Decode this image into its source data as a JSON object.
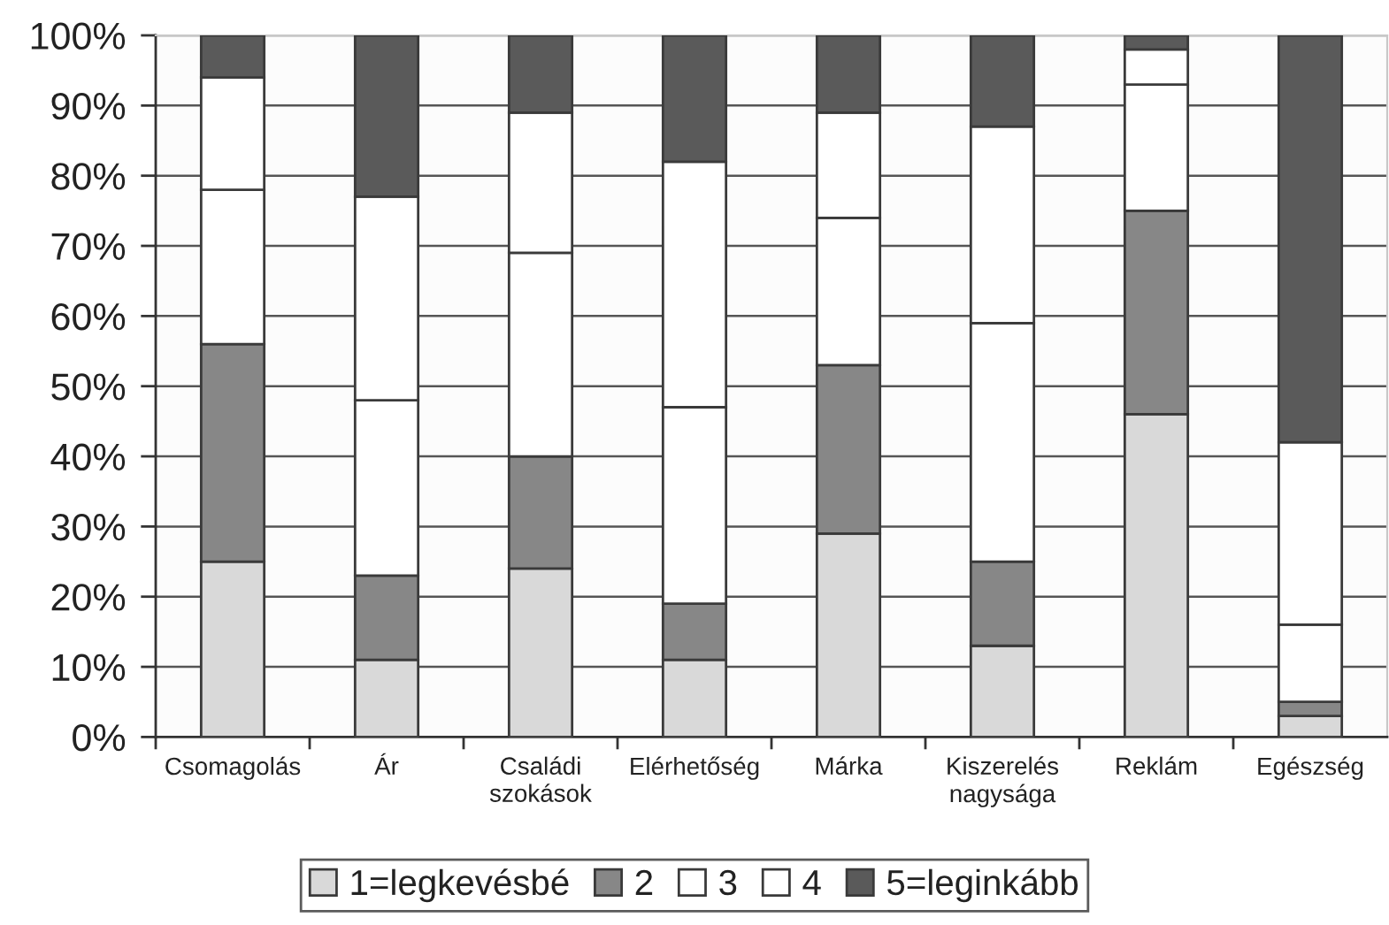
{
  "chart_data": {
    "type": "bar",
    "stacked": true,
    "categories": [
      "Csomagolás",
      "Ár",
      "Családi szokások",
      "Elérhetőség",
      "Márka",
      "Kiszerelés nagysága",
      "Reklám",
      "Egészség"
    ],
    "series": [
      {
        "name": "1=legkevésbé",
        "color": "#d9d9d9",
        "values": [
          25,
          11,
          24,
          11,
          29,
          13,
          46,
          3
        ]
      },
      {
        "name": "2",
        "color": "#878787",
        "values": [
          31,
          12,
          16,
          8,
          24,
          12,
          29,
          2
        ]
      },
      {
        "name": "3",
        "color": "#ffffff",
        "values": [
          22,
          25,
          29,
          28,
          21,
          34,
          18,
          11
        ]
      },
      {
        "name": "4",
        "color": "#ffffff",
        "values": [
          16,
          29,
          20,
          35,
          15,
          28,
          5,
          26
        ]
      },
      {
        "name": "5=leginkább",
        "color": "#5a5a5a",
        "values": [
          6,
          23,
          11,
          18,
          11,
          13,
          2,
          58
        ]
      }
    ],
    "ylim": [
      0,
      100
    ],
    "yticks": [
      {
        "value": 0,
        "label": "0%"
      },
      {
        "value": 10,
        "label": "10%"
      },
      {
        "value": 20,
        "label": "20%"
      },
      {
        "value": 30,
        "label": "30%"
      },
      {
        "value": 40,
        "label": "40%"
      },
      {
        "value": 50,
        "label": "50%"
      },
      {
        "value": 60,
        "label": "60%"
      },
      {
        "value": 70,
        "label": "70%"
      },
      {
        "value": 80,
        "label": "80%"
      },
      {
        "value": 90,
        "label": "90%"
      },
      {
        "value": 100,
        "label": "100%"
      }
    ],
    "grid": "y",
    "legend": "bottom"
  }
}
